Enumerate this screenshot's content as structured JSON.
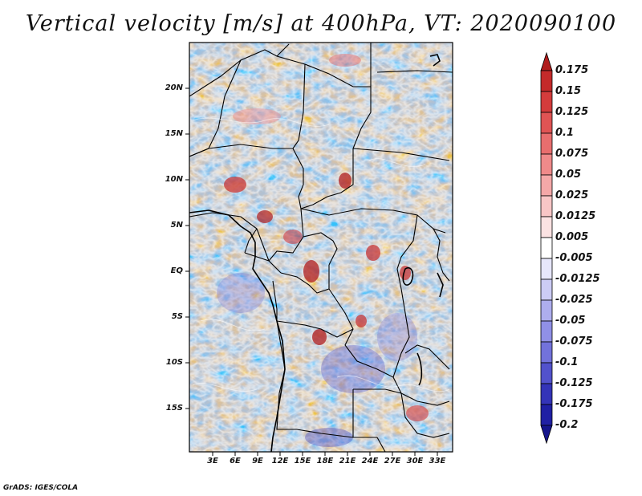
{
  "title": "Vertical velocity [m/s] at 400hPa, VT: 2020090100",
  "credit": "GrADS: IGES/COLA",
  "map": {
    "variable": "Vertical velocity",
    "units": "m/s",
    "level": "400hPa",
    "valid_time": "2020090100",
    "lat_labels": [
      "20N",
      "15N",
      "10N",
      "5N",
      "EQ",
      "5S",
      "10S",
      "15S"
    ],
    "lon_labels": [
      "3E",
      "6E",
      "9E",
      "12E",
      "15E",
      "18E",
      "21E",
      "24E",
      "27E",
      "30E",
      "33E"
    ]
  },
  "colorbar": {
    "labels": [
      "0.175",
      "0.15",
      "0.125",
      "0.1",
      "0.075",
      "0.05",
      "0.025",
      "0.0125",
      "0.005",
      "-0.005",
      "-0.0125",
      "-0.025",
      "-0.05",
      "-0.075",
      "-0.1",
      "-0.125",
      "-0.175",
      "-0.2"
    ],
    "colors": [
      "#b01c1c",
      "#c42a2a",
      "#d43c3c",
      "#e05454",
      "#e86e6e",
      "#ef8a8a",
      "#f4a8a8",
      "#f8c6c6",
      "#fbe2e2",
      "#ffffff",
      "#e6e6fb",
      "#ccccf5",
      "#aeaeee",
      "#9090e6",
      "#7272db",
      "#5252cc",
      "#3434b8",
      "#2020a4",
      "#15158c"
    ]
  }
}
